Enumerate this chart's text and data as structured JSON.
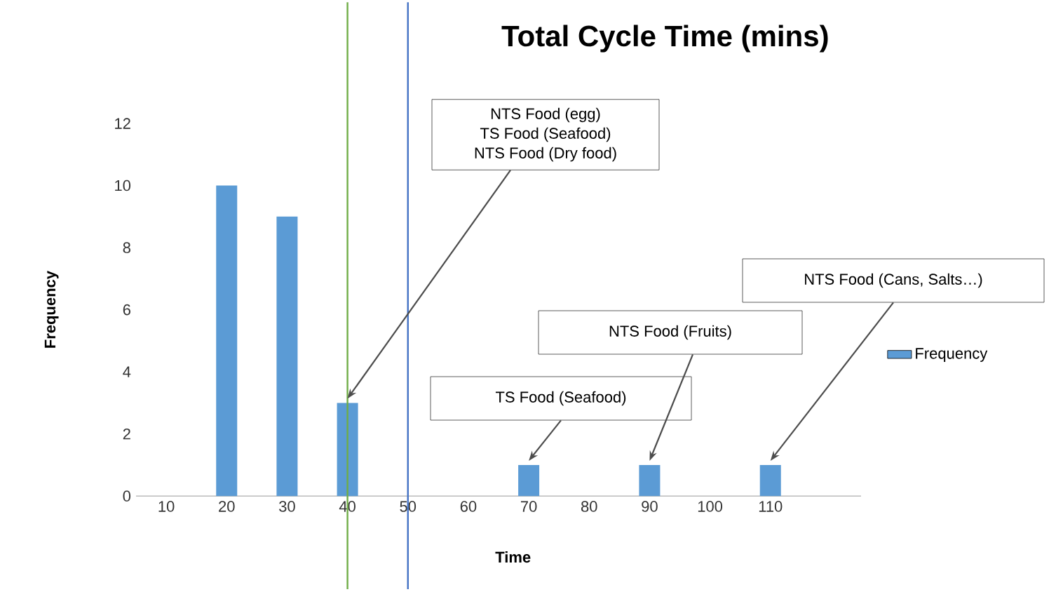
{
  "chart_data": {
    "type": "bar",
    "title": "Total Cycle Time (mins)",
    "xlabel": "Time",
    "ylabel": "Frequency",
    "categories": [
      "10",
      "20",
      "30",
      "40",
      "50",
      "60",
      "70",
      "80",
      "90",
      "100",
      "110",
      null
    ],
    "series": [
      {
        "name": "Frequency",
        "color": "#5b9bd5",
        "values": [
          0,
          10,
          9,
          3,
          0,
          0,
          1,
          0,
          1,
          0,
          1,
          0
        ]
      }
    ],
    "ylim": [
      0,
      12
    ],
    "yticks": [
      0,
      2,
      4,
      6,
      8,
      10,
      12
    ],
    "legend": "right",
    "ref_lines": [
      {
        "axis": "x",
        "value": "40",
        "color": "#70ad47"
      },
      {
        "axis": "x",
        "value": "50",
        "color": "#4472c4"
      }
    ],
    "annotations": [
      "NTS Food (egg)",
      "TS Food (Seafood)",
      {
        "text": "NTS Food (Dry food)",
        "x": "40",
        "y": 3
      },
      {
        "text": "TS Food (Seafood)",
        "x": "70",
        "y": 1
      },
      {
        "text": "NTS Food (Fruits)",
        "x": "90",
        "y": 1
      },
      {
        "text": "NTS Food (Cans, Salts…)",
        "x": "110",
        "y": 1
      }
    ]
  }
}
